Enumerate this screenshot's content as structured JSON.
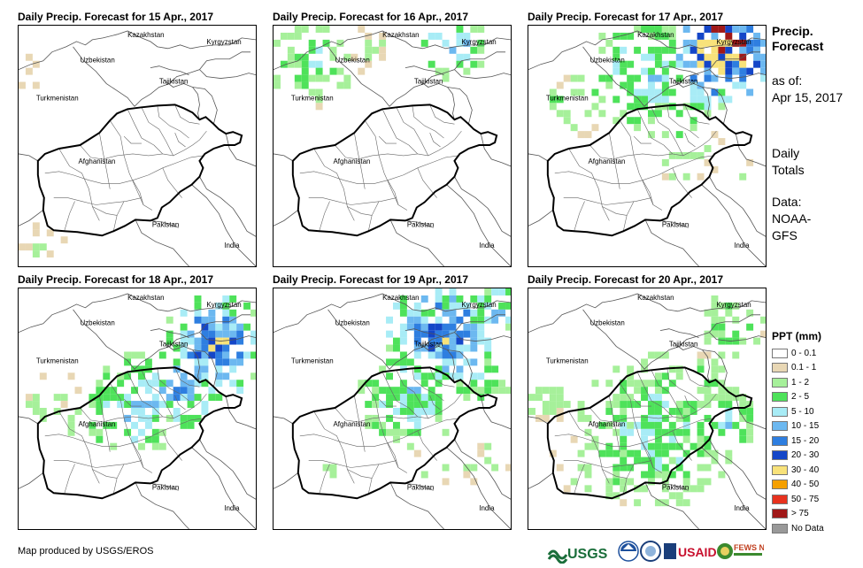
{
  "panels": [
    {
      "title": "Daily Precip. Forecast for 15 Apr., 2017",
      "day": 0
    },
    {
      "title": "Daily Precip. Forecast for 16 Apr., 2017",
      "day": 1
    },
    {
      "title": "Daily Precip. Forecast for 17 Apr., 2017",
      "day": 2
    },
    {
      "title": "Daily Precip. Forecast for 18 Apr., 2017",
      "day": 3
    },
    {
      "title": "Daily Precip. Forecast for 19 Apr., 2017",
      "day": 4
    },
    {
      "title": "Daily Precip. Forecast for 20 Apr., 2017",
      "day": 5
    }
  ],
  "countries": [
    "Kazakhstan",
    "Kyrgyzstan",
    "Uzbekistan",
    "Tajikistan",
    "Turkmenistan",
    "Afghanistan",
    "Pakistan",
    "India"
  ],
  "sidebar": {
    "title_line1": "Precip.",
    "title_line2": "Forecast",
    "asof_line1": "as of:",
    "asof_line2": "Apr 15, 2017",
    "daily_line1": "Daily",
    "daily_line2": "Totals",
    "data_line1": "Data:",
    "data_line2": "NOAA-",
    "data_line3": "GFS"
  },
  "legend": {
    "title": "PPT (mm)",
    "items": [
      {
        "label": "0 - 0.1",
        "color": "#ffffff"
      },
      {
        "label": "0.1 - 1",
        "color": "#e8d7b4"
      },
      {
        "label": "1 - 2",
        "color": "#a6f09a"
      },
      {
        "label": "2 - 5",
        "color": "#4ee25a"
      },
      {
        "label": "5 - 10",
        "color": "#a8ecf6"
      },
      {
        "label": "10 - 15",
        "color": "#6cb8f0"
      },
      {
        "label": "15 - 20",
        "color": "#2e7ee0"
      },
      {
        "label": "20 - 30",
        "color": "#1446c8"
      },
      {
        "label": "30 - 40",
        "color": "#f8e27a"
      },
      {
        "label": "40 - 50",
        "color": "#f5a000"
      },
      {
        "label": "50 - 75",
        "color": "#e8321e"
      },
      {
        "label": "> 75",
        "color": "#a01818"
      },
      {
        "label": "No Data",
        "color": "#999999"
      }
    ]
  },
  "credit": "Map produced by USGS/EROS",
  "logos": [
    "USGS",
    "NOAA",
    "USAID",
    "FEWS NET"
  ]
}
